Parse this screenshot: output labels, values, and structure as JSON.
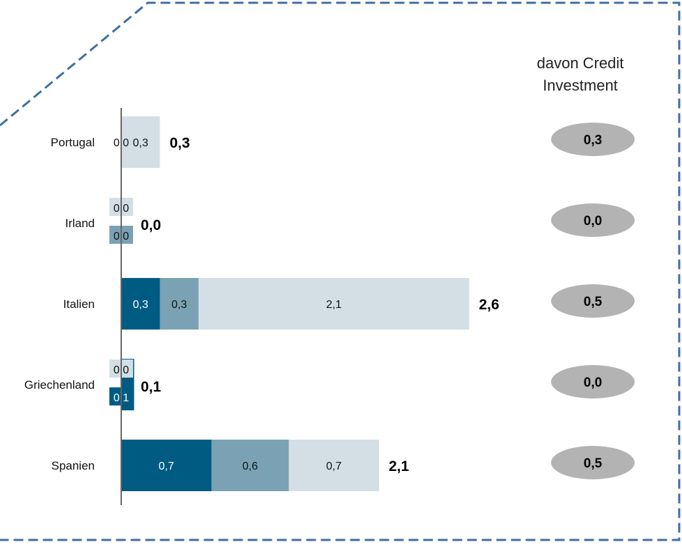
{
  "chart_data": {
    "type": "bar",
    "orientation": "horizontal",
    "stacked": true,
    "legend": "none",
    "grid": false,
    "categories": [
      "Portugal",
      "Irland",
      "Italien",
      "Griechenland",
      "Spanien"
    ],
    "series": [
      {
        "values": [
          0.0,
          0.0,
          0.3,
          0.1,
          0.7
        ],
        "labels": [
          "0,0",
          "0,0",
          "0,3",
          "0,1",
          "0,7"
        ]
      },
      {
        "values": [
          0.0,
          0.0,
          0.3,
          0.0,
          0.6
        ],
        "labels": [
          "0,0",
          "0,0",
          "0,3",
          "0,0",
          "0,6"
        ]
      },
      {
        "values": [
          0.3,
          0.0,
          2.1,
          0.0,
          0.7
        ],
        "labels": [
          "0,3",
          "0,0",
          "2,1",
          "0,0",
          "0,7"
        ]
      }
    ],
    "totals": [
      "0,3",
      "0,0",
      "2,6",
      "0,1",
      "2,1"
    ],
    "total_values": [
      0.3,
      0.0,
      2.6,
      0.1,
      2.1
    ],
    "credit_investment_header": [
      "davon Credit",
      "Investment"
    ],
    "credit_investment": [
      "0,3",
      "0,0",
      "0,5",
      "0,0",
      "0,5"
    ],
    "xlim": [
      0,
      2.8
    ],
    "colors": {
      "series": [
        "#005b82",
        "#7aa2b4",
        "#d3dfe5"
      ],
      "label_text": [
        "#ffffff",
        "#111111",
        "#111111"
      ],
      "ellipse": "#b3b3b3",
      "axis": "#666666",
      "frame": "#3f6ea2"
    }
  }
}
